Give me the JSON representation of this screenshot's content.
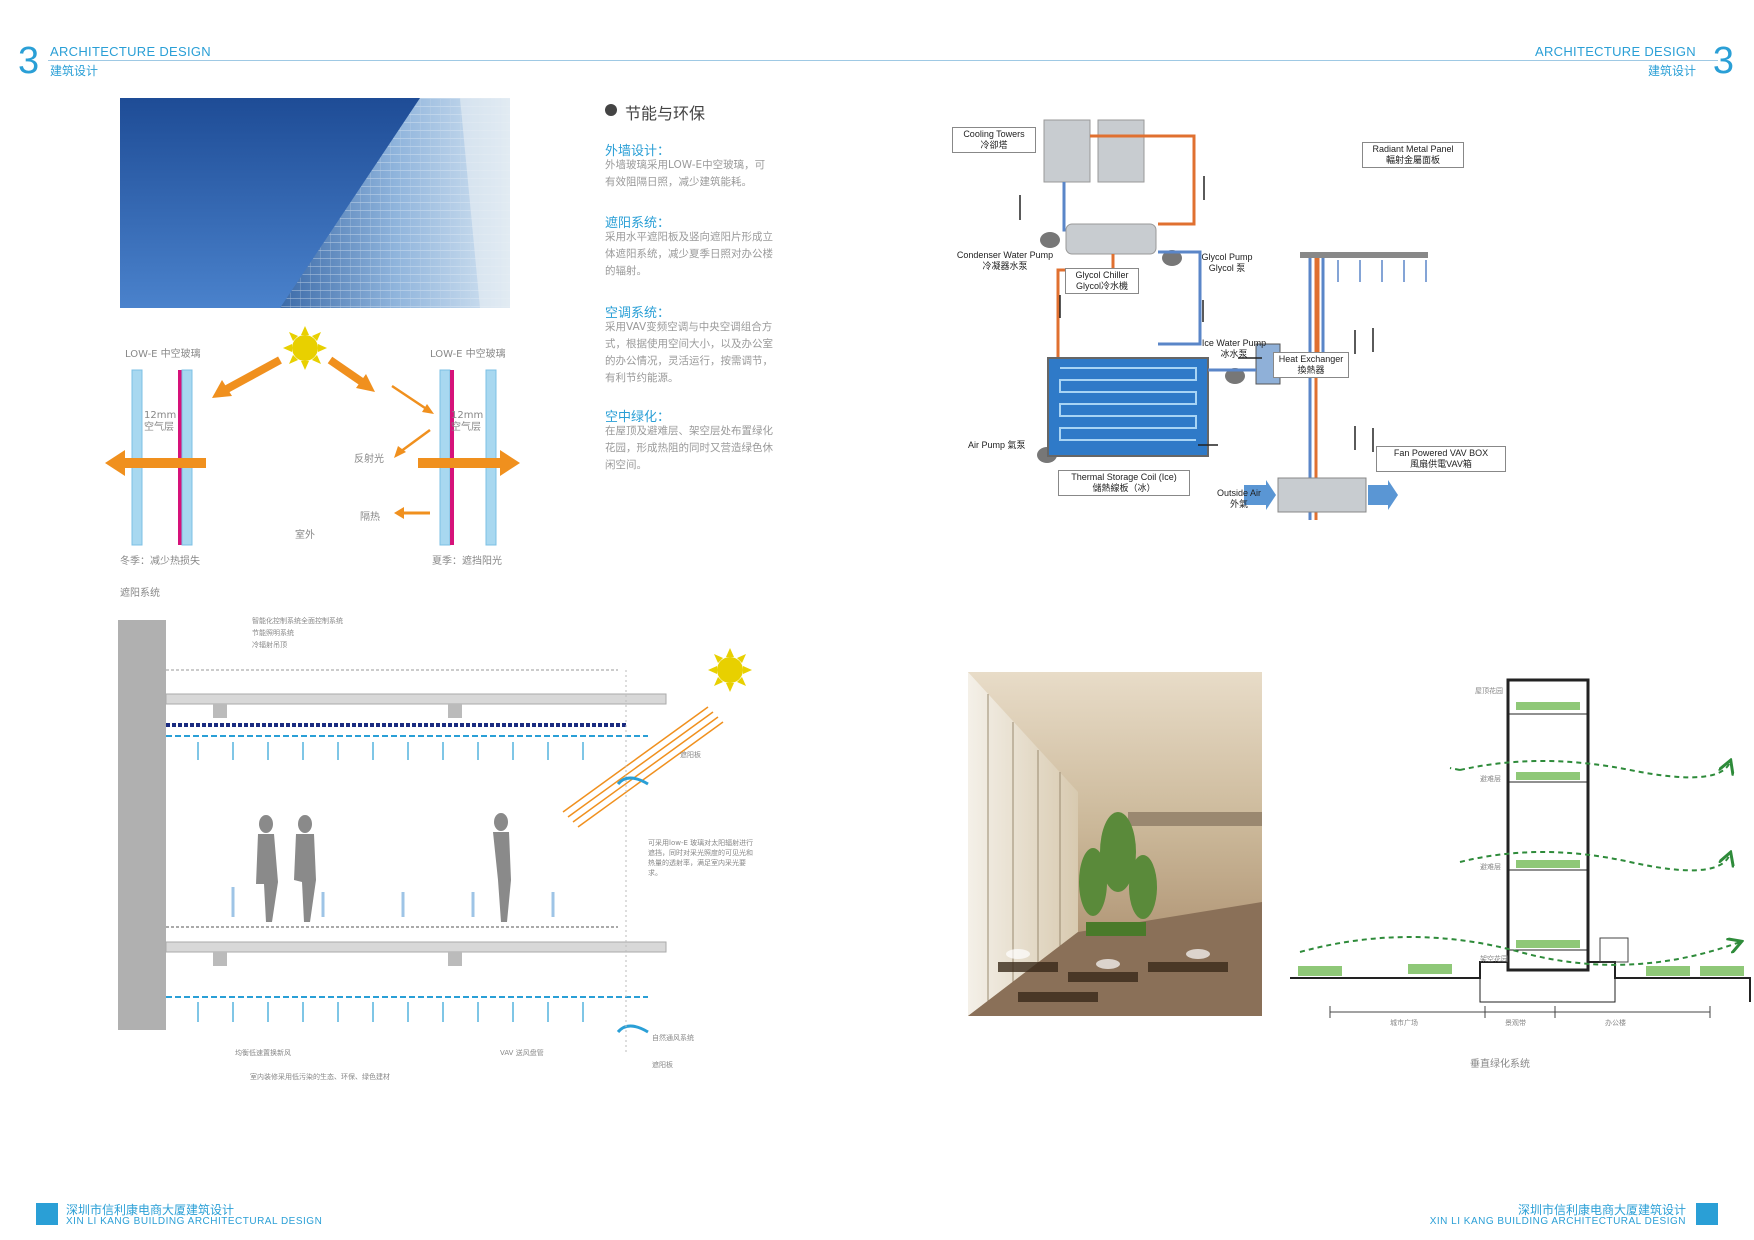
{
  "header": {
    "number": "3",
    "title_en": "ARCHITECTURE DESIGN",
    "title_cn": "建筑设计"
  },
  "section": {
    "title": "节能与环保",
    "items": [
      {
        "heading": "外墙设计：",
        "text": "外墙玻璃采用LOW-E中空玻璃，可有效阻隔日照，减少建筑能耗。"
      },
      {
        "heading": "遮阳系统：",
        "text": "采用水平遮阳板及竖向遮阳片形成立体遮阳系统，减少夏季日照对办公楼的辐射。"
      },
      {
        "heading": "空调系统：",
        "text": "采用VAV变频空调与中央空调组合方式，根据使用空间大小，以及办公室的办公情况，灵活运行，按需调节，有利节约能源。"
      },
      {
        "heading": "空中绿化：",
        "text": "在屋顶及避难层、架空层处布置绿化花园，形成热阻的同时又营造绿色休闲空间。"
      }
    ]
  },
  "glass": {
    "left_title": "LOW-E 中空玻璃",
    "right_title": "LOW-E 中空玻璃",
    "air_left": "12mm 空气层",
    "air_right": "12mm 空气层",
    "reflect": "反射光",
    "insulate": "隔热",
    "outdoor": "室外",
    "winter": "冬季：减少热损失",
    "summer": "夏季：遮挡阳光",
    "caption": "遮阳系统"
  },
  "section_dwg": {
    "note1": "智能化控制系统全面控制系统",
    "note2": "节能照明系统",
    "note3": "冷辐射吊顶",
    "shade": "遮阳板",
    "glass_note": "可采用low-E 玻璃对太阳辐射进行遮挡，同时对采光照度的可见光和热量的透射率，满足室内采光要求。",
    "radiant_air": "均衡低速置换新风",
    "vav": "VAV 送风盘管",
    "materials": "室内装修采用低污染的生态、环保、绿色建材",
    "natural_vent": "自然通风系统",
    "shade2": "遮阳板"
  },
  "hvac": {
    "cooling_towers_en": "Cooling Towers",
    "cooling_towers_cn": "冷卻塔",
    "condenser_en": "Condenser Water Pump",
    "condenser_cn": "冷凝器水泵",
    "glycol_chiller_en": "Glycol Chiller",
    "glycol_chiller_cn": "Glycol冷水機",
    "glycol_pump_en": "Glycol Pump",
    "glycol_pump_cn": "Glycol 泵",
    "ice_pump_en": "Ice Water Pump",
    "ice_pump_cn": "冰水泵",
    "heat_ex_en": "Heat Exchanger",
    "heat_ex_cn": "換熱器",
    "radiant_en": "Radiant Metal Panel",
    "radiant_cn": "輻射金屬面板",
    "air_pump_en": "Air Pump",
    "air_pump_cn": "氣泵",
    "thermal_en": "Thermal Storage Coil (Ice)",
    "thermal_cn": "儲熱線板（冰）",
    "outside_en": "Outside Air",
    "outside_cn": "外氣",
    "fan_en": "Fan Powered VAV BOX",
    "fan_cn": "風扇供電VAV箱"
  },
  "vertical": {
    "roof": "屋顶花园",
    "refuge1": "避难层",
    "refuge2": "避难层",
    "podium": "架空花园",
    "seg1": "城市广场",
    "seg2": "景观带",
    "seg3": "办公楼",
    "caption": "垂直绿化系统"
  },
  "footer": {
    "cn": "深圳市信利康电商大厦建筑设计",
    "en": "XIN LI KANG BUILDING ARCHITECTURAL DESIGN"
  },
  "colors": {
    "accent": "#2a9fd6",
    "orange": "#f0901e",
    "green": "#2e8b3a",
    "glass": "#a8d8f0",
    "magenta": "#d6127a"
  }
}
